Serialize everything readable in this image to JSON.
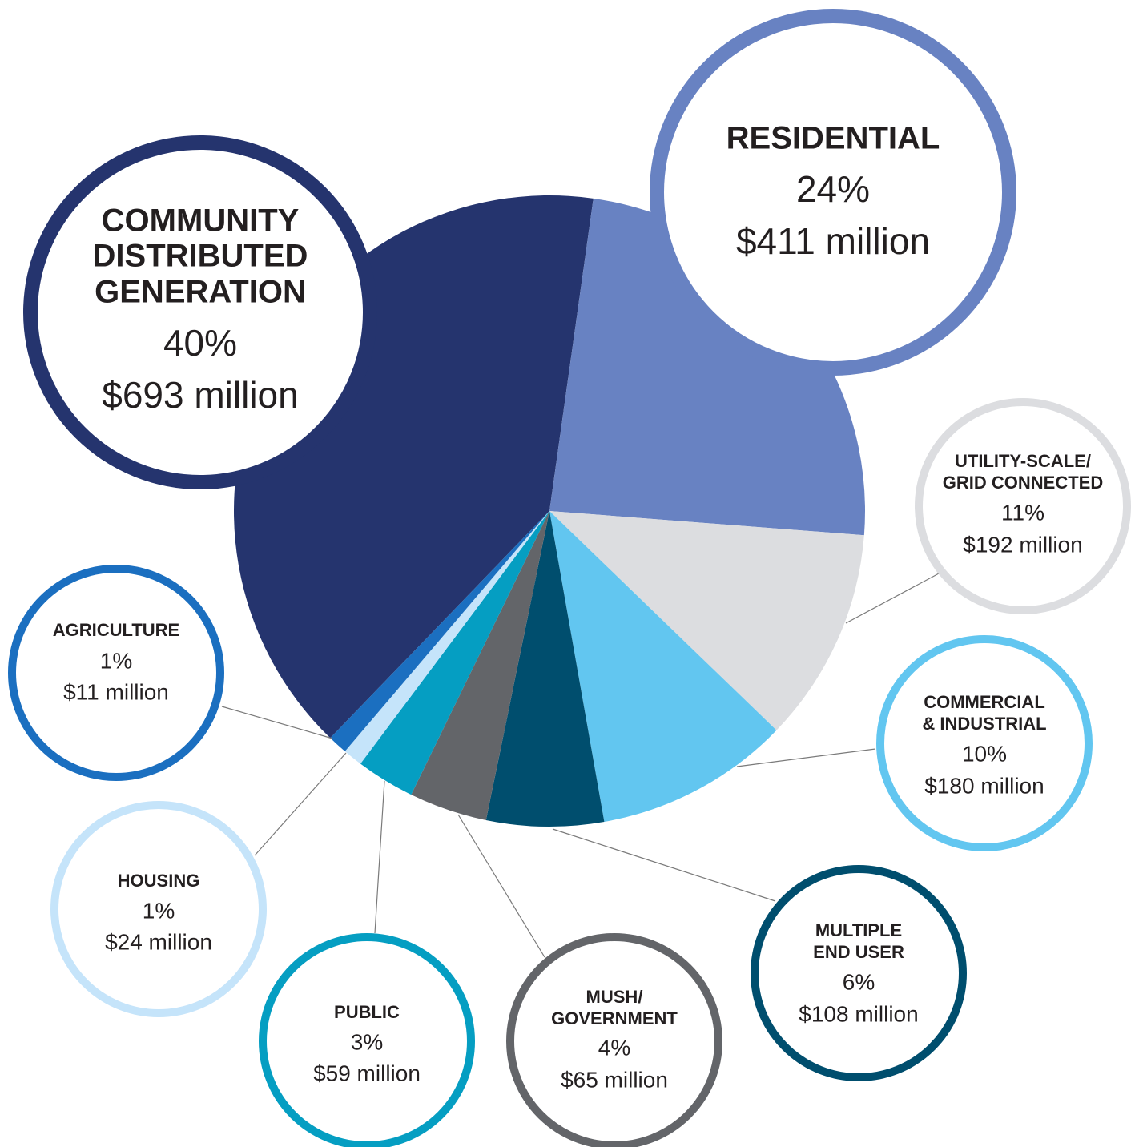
{
  "chart_data": {
    "type": "pie",
    "categories": [
      [
        "COMMUNITY",
        "DISTRIBUTED",
        "GENERATION"
      ],
      [
        "RESIDENTIAL"
      ],
      [
        "UTILITY-SCALE/",
        "GRID CONNECTED"
      ],
      [
        "COMMERCIAL",
        "& INDUSTRIAL"
      ],
      [
        "MULTIPLE",
        "END USER"
      ],
      [
        "MUSH/",
        "GOVERNMENT"
      ],
      [
        "PUBLIC"
      ],
      [
        "HOUSING"
      ],
      [
        "AGRICULTURE"
      ]
    ],
    "values": [
      40,
      24,
      11,
      10,
      6,
      4,
      3,
      1,
      1
    ],
    "value_labels": [
      "40%",
      "24%",
      "11%",
      "10%",
      "6%",
      "4%",
      "3%",
      "1%",
      "1%"
    ],
    "amount_labels": [
      "$693 million",
      "$411 million",
      "$192 million",
      "$180 million",
      "$108 million",
      "$65 million",
      "$59 million",
      "$24 million",
      "$11 million"
    ],
    "colors": [
      "#25346e",
      "#6882c2",
      "#dcdde0",
      "#62c6f0",
      "#004e6e",
      "#636569",
      "#059ec2",
      "#c5e4fa",
      "#1b6fc0"
    ]
  }
}
